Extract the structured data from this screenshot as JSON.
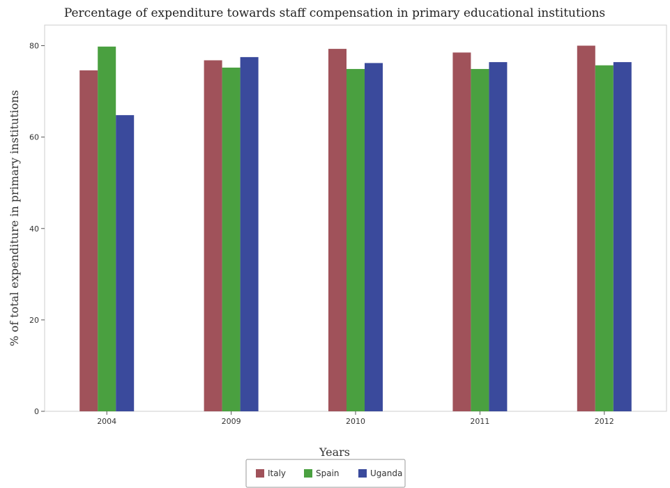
{
  "chart_data": {
    "type": "bar",
    "title": "Percentage of expenditure towards staff compensation in primary educational institutions",
    "xlabel": "Years",
    "ylabel": "% of total expenditure in primary institutions",
    "categories": [
      "2004",
      "2009",
      "2010",
      "2011",
      "2012"
    ],
    "series": [
      {
        "name": "Italy",
        "color": "#a0525a",
        "values": [
          74.6,
          76.8,
          79.3,
          78.5,
          80.0
        ]
      },
      {
        "name": "Spain",
        "color": "#4aa040",
        "values": [
          79.8,
          75.2,
          74.9,
          74.9,
          75.7
        ]
      },
      {
        "name": "Uganda",
        "color": "#3a4a9c",
        "values": [
          64.8,
          77.5,
          76.2,
          76.4,
          76.4
        ]
      }
    ],
    "yticks": [
      0,
      20,
      40,
      60,
      80
    ],
    "ylim": [
      0,
      84.5
    ],
    "grid": false,
    "legend_position": "bottom"
  }
}
